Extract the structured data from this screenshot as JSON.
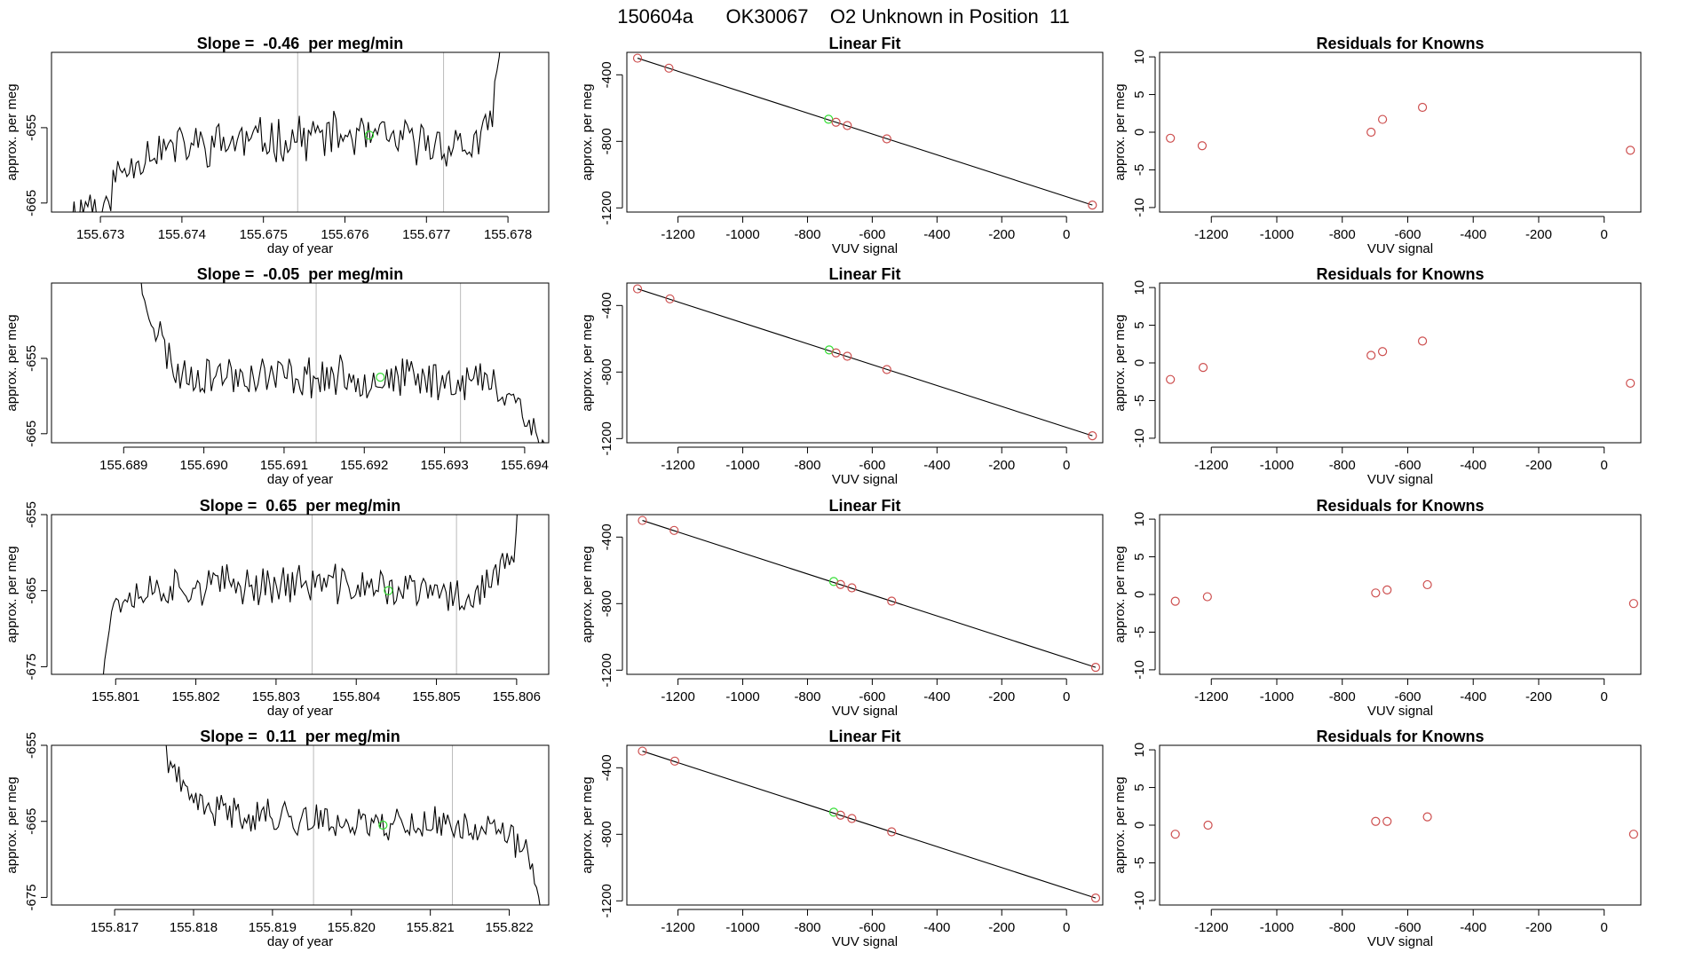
{
  "page_title": "150604a      OK30067    O2 Unknown in Position  11",
  "colors": {
    "line": "#000000",
    "known": "#CD4F4F",
    "unknown": "#33DD33",
    "divider": "#BBBBBB",
    "axis": "#000000"
  },
  "chart_data": [
    {
      "type": "line",
      "row": 0,
      "title": "Slope =  -0.46  per meg/min",
      "xlabel": "day of year",
      "ylabel": "approx. per meg",
      "xlim": [
        155.6724,
        155.6785
      ],
      "ylim": [
        -666.2,
        -645.0
      ],
      "xticks": [
        155.673,
        155.674,
        155.675,
        155.676,
        155.677,
        155.678
      ],
      "xtick_labels": [
        "155.673",
        "155.674",
        "155.675",
        "155.676",
        "155.677",
        "155.678"
      ],
      "yticks": [
        -655,
        -665
      ],
      "ytick_labels": [
        "-655",
        "-665"
      ],
      "dividers": [
        155.67542,
        155.67721
      ],
      "marker": {
        "x": 155.6763,
        "y": -656.0
      },
      "trace": {
        "seed": 11,
        "x0": 155.67262,
        "x1": 155.67795,
        "n": 190,
        "anchors": [
          [
            0,
            -667
          ],
          [
            0.05,
            -664.5
          ],
          [
            0.08,
            -667
          ],
          [
            0.1,
            -662
          ],
          [
            0.18,
            -658
          ],
          [
            0.35,
            -657
          ],
          [
            0.6,
            -656
          ],
          [
            0.92,
            -657.5
          ],
          [
            0.965,
            -656
          ],
          [
            0.985,
            -648
          ],
          [
            1,
            -640
          ]
        ],
        "noise": 2.6
      }
    },
    {
      "type": "line",
      "row": 1,
      "title": "Slope =  -0.05  per meg/min",
      "xlabel": "day of year",
      "ylabel": "approx. per meg",
      "xlim": [
        155.6881,
        155.6943
      ],
      "ylim": [
        -666.2,
        -645.0
      ],
      "xticks": [
        155.689,
        155.69,
        155.691,
        155.692,
        155.693,
        155.694
      ],
      "xtick_labels": [
        "155.689",
        "155.690",
        "155.691",
        "155.692",
        "155.693",
        "155.694"
      ],
      "yticks": [
        -655,
        -665
      ],
      "ytick_labels": [
        "-655",
        "-665"
      ],
      "dividers": [
        155.6914,
        155.6932
      ],
      "marker": {
        "x": 155.6922,
        "y": -657.5
      },
      "trace": {
        "seed": 23,
        "x0": 155.68915,
        "x1": 155.69425,
        "n": 185,
        "anchors": [
          [
            0,
            -643
          ],
          [
            0.05,
            -651
          ],
          [
            0.1,
            -657
          ],
          [
            0.5,
            -657.5
          ],
          [
            0.85,
            -658
          ],
          [
            0.93,
            -660
          ],
          [
            0.975,
            -665
          ],
          [
            1,
            -667
          ]
        ],
        "noise": 2.4
      }
    },
    {
      "type": "line",
      "row": 2,
      "title": "Slope =  0.65  per meg/min",
      "xlabel": "day of year",
      "ylabel": "approx. per meg",
      "xlim": [
        155.8002,
        155.8064
      ],
      "ylim": [
        -676.0,
        -655.0
      ],
      "xticks": [
        155.801,
        155.802,
        155.803,
        155.804,
        155.805,
        155.806
      ],
      "xtick_labels": [
        "155.801",
        "155.802",
        "155.803",
        "155.804",
        "155.805",
        "155.806"
      ],
      "yticks": [
        -655,
        -665,
        -675
      ],
      "ytick_labels": [
        "-655",
        "-665",
        "-675"
      ],
      "dividers": [
        155.80345,
        155.80525
      ],
      "marker": {
        "x": 155.8044,
        "y": -665.0
      },
      "trace": {
        "seed": 37,
        "x0": 155.80078,
        "x1": 155.80605,
        "n": 188,
        "anchors": [
          [
            0,
            -678
          ],
          [
            0.04,
            -666
          ],
          [
            0.15,
            -664.5
          ],
          [
            0.5,
            -664
          ],
          [
            0.75,
            -665
          ],
          [
            0.88,
            -666
          ],
          [
            0.96,
            -662
          ],
          [
            0.985,
            -660
          ],
          [
            1,
            -650
          ]
        ],
        "noise": 2.3
      }
    },
    {
      "type": "line",
      "row": 3,
      "title": "Slope =  0.11  per meg/min",
      "xlabel": "day of year",
      "ylabel": "approx. per meg",
      "xlim": [
        155.8162,
        155.8225
      ],
      "ylim": [
        -676.0,
        -655.0
      ],
      "xticks": [
        155.817,
        155.818,
        155.819,
        155.82,
        155.821,
        155.822
      ],
      "xtick_labels": [
        "155.817",
        "155.818",
        "155.819",
        "155.820",
        "155.821",
        "155.822"
      ],
      "yticks": [
        -655,
        -665,
        -675
      ],
      "ytick_labels": [
        "-655",
        "-665",
        "-675"
      ],
      "dividers": [
        155.81952,
        155.82128
      ],
      "marker": {
        "x": 155.8204,
        "y": -665.5
      },
      "trace": {
        "seed": 41,
        "x0": 155.8176,
        "x1": 155.8224,
        "n": 180,
        "anchors": [
          [
            0,
            -654
          ],
          [
            0.05,
            -661
          ],
          [
            0.12,
            -663.5
          ],
          [
            0.45,
            -665
          ],
          [
            0.8,
            -665.5
          ],
          [
            0.9,
            -666.5
          ],
          [
            0.96,
            -669
          ],
          [
            1,
            -675
          ]
        ],
        "noise": 2.0
      }
    },
    {
      "type": "scatter",
      "row": 0,
      "title": "Linear Fit",
      "xlabel": "VUV signal",
      "ylabel": "approx. per meg",
      "xlim": [
        -1358,
        112
      ],
      "ylim": [
        -1225,
        -265
      ],
      "xticks": [
        -1200,
        -1000,
        -800,
        -600,
        -400,
        -200,
        0
      ],
      "xtick_labels": [
        "-1200",
        "-1000",
        "-800",
        "-600",
        "-400",
        "-200",
        "0"
      ],
      "yticks": [
        -400,
        -800,
        -1200
      ],
      "ytick_labels": [
        "-400",
        "-800",
        "-1200"
      ],
      "known": [
        [
          -1325,
          -300
        ],
        [
          -1228,
          -360
        ],
        [
          -712,
          -685
        ],
        [
          -677,
          -705
        ],
        [
          -555,
          -785
        ],
        [
          80,
          -1183
        ]
      ],
      "unknown": [
        [
          -735,
          -667
        ]
      ],
      "fit": [
        [
          -1325,
          -300
        ],
        [
          80,
          -1183
        ]
      ]
    },
    {
      "type": "scatter",
      "row": 1,
      "title": "Linear Fit",
      "xlabel": "VUV signal",
      "ylabel": "approx. per meg",
      "xlim": [
        -1358,
        112
      ],
      "ylim": [
        -1225,
        -265
      ],
      "xticks": [
        -1200,
        -1000,
        -800,
        -600,
        -400,
        -200,
        0
      ],
      "xtick_labels": [
        "-1200",
        "-1000",
        "-800",
        "-600",
        "-400",
        "-200",
        "0"
      ],
      "yticks": [
        -400,
        -800,
        -1200
      ],
      "ytick_labels": [
        "-400",
        "-800",
        "-1200"
      ],
      "known": [
        [
          -1325,
          -300
        ],
        [
          -1225,
          -360
        ],
        [
          -712,
          -685
        ],
        [
          -677,
          -705
        ],
        [
          -555,
          -785
        ],
        [
          80,
          -1183
        ]
      ],
      "unknown": [
        [
          -733,
          -667
        ]
      ],
      "fit": [
        [
          -1325,
          -300
        ],
        [
          80,
          -1183
        ]
      ]
    },
    {
      "type": "scatter",
      "row": 2,
      "title": "Linear Fit",
      "xlabel": "VUV signal",
      "ylabel": "approx. per meg",
      "xlim": [
        -1358,
        112
      ],
      "ylim": [
        -1225,
        -265
      ],
      "xticks": [
        -1200,
        -1000,
        -800,
        -600,
        -400,
        -200,
        0
      ],
      "xtick_labels": [
        "-1200",
        "-1000",
        "-800",
        "-600",
        "-400",
        "-200",
        "0"
      ],
      "yticks": [
        -400,
        -800,
        -1200
      ],
      "ytick_labels": [
        "-400",
        "-800",
        "-1200"
      ],
      "known": [
        [
          -1310,
          -300
        ],
        [
          -1212,
          -360
        ],
        [
          -698,
          -685
        ],
        [
          -663,
          -705
        ],
        [
          -540,
          -785
        ],
        [
          90,
          -1183
        ]
      ],
      "unknown": [
        [
          -719,
          -667
        ]
      ],
      "fit": [
        [
          -1310,
          -300
        ],
        [
          90,
          -1183
        ]
      ]
    },
    {
      "type": "scatter",
      "row": 3,
      "title": "Linear Fit",
      "xlabel": "VUV signal",
      "ylabel": "approx. per meg",
      "xlim": [
        -1358,
        112
      ],
      "ylim": [
        -1225,
        -265
      ],
      "xticks": [
        -1200,
        -1000,
        -800,
        -600,
        -400,
        -200,
        0
      ],
      "xtick_labels": [
        "-1200",
        "-1000",
        "-800",
        "-600",
        "-400",
        "-200",
        "0"
      ],
      "yticks": [
        -400,
        -800,
        -1200
      ],
      "ytick_labels": [
        "-400",
        "-800",
        "-1200"
      ],
      "known": [
        [
          -1310,
          -300
        ],
        [
          -1210,
          -360
        ],
        [
          -698,
          -685
        ],
        [
          -663,
          -705
        ],
        [
          -540,
          -785
        ],
        [
          90,
          -1183
        ]
      ],
      "unknown": [
        [
          -719,
          -667
        ]
      ],
      "fit": [
        [
          -1310,
          -300
        ],
        [
          90,
          -1183
        ]
      ]
    },
    {
      "type": "scatter",
      "row": 0,
      "title": "Residuals for Knowns",
      "xlabel": "VUV signal",
      "ylabel": "approx. per meg",
      "xlim": [
        -1358,
        112
      ],
      "ylim": [
        -10.6,
        10.6
      ],
      "xticks": [
        -1200,
        -1000,
        -800,
        -600,
        -400,
        -200,
        0
      ],
      "xtick_labels": [
        "-1200",
        "-1000",
        "-800",
        "-600",
        "-400",
        "-200",
        "0"
      ],
      "yticks": [
        10,
        5,
        0,
        -5,
        -10
      ],
      "ytick_labels": [
        "10",
        "5",
        "0",
        "-5",
        "-10"
      ],
      "known": [
        [
          -1325,
          -0.8
        ],
        [
          -1228,
          -1.8
        ],
        [
          -712,
          0.0
        ],
        [
          -677,
          1.7
        ],
        [
          -555,
          3.3
        ],
        [
          80,
          -2.4
        ]
      ]
    },
    {
      "type": "scatter",
      "row": 1,
      "title": "Residuals for Knowns",
      "xlabel": "VUV signal",
      "ylabel": "approx. per meg",
      "xlim": [
        -1358,
        112
      ],
      "ylim": [
        -10.6,
        10.6
      ],
      "xticks": [
        -1200,
        -1000,
        -800,
        -600,
        -400,
        -200,
        0
      ],
      "xtick_labels": [
        "-1200",
        "-1000",
        "-800",
        "-600",
        "-400",
        "-200",
        "0"
      ],
      "yticks": [
        10,
        5,
        0,
        -5,
        -10
      ],
      "ytick_labels": [
        "10",
        "5",
        "0",
        "-5",
        "-10"
      ],
      "known": [
        [
          -1325,
          -2.2
        ],
        [
          -1225,
          -0.6
        ],
        [
          -712,
          1.0
        ],
        [
          -677,
          1.5
        ],
        [
          -555,
          2.9
        ],
        [
          80,
          -2.7
        ]
      ]
    },
    {
      "type": "scatter",
      "row": 2,
      "title": "Residuals for Knowns",
      "xlabel": "VUV signal",
      "ylabel": "approx. per meg",
      "xlim": [
        -1358,
        112
      ],
      "ylim": [
        -10.6,
        10.6
      ],
      "xticks": [
        -1200,
        -1000,
        -800,
        -600,
        -400,
        -200,
        0
      ],
      "xtick_labels": [
        "-1200",
        "-1000",
        "-800",
        "-600",
        "-400",
        "-200",
        "0"
      ],
      "yticks": [
        10,
        5,
        0,
        -5,
        -10
      ],
      "ytick_labels": [
        "10",
        "5",
        "0",
        "-5",
        "-10"
      ],
      "known": [
        [
          -1310,
          -0.9
        ],
        [
          -1212,
          -0.3
        ],
        [
          -698,
          0.2
        ],
        [
          -663,
          0.6
        ],
        [
          -540,
          1.3
        ],
        [
          90,
          -1.2
        ]
      ]
    },
    {
      "type": "scatter",
      "row": 3,
      "title": "Residuals for Knowns",
      "xlabel": "VUV signal",
      "ylabel": "approx. per meg",
      "xlim": [
        -1358,
        112
      ],
      "ylim": [
        -10.6,
        10.6
      ],
      "xticks": [
        -1200,
        -1000,
        -800,
        -600,
        -400,
        -200,
        0
      ],
      "xtick_labels": [
        "-1200",
        "-1000",
        "-800",
        "-600",
        "-400",
        "-200",
        "0"
      ],
      "yticks": [
        10,
        5,
        0,
        -5,
        -10
      ],
      "ytick_labels": [
        "10",
        "5",
        "0",
        "-5",
        "-10"
      ],
      "known": [
        [
          -1310,
          -1.2
        ],
        [
          -1210,
          0.0
        ],
        [
          -698,
          0.5
        ],
        [
          -663,
          0.5
        ],
        [
          -540,
          1.1
        ],
        [
          90,
          -1.2
        ]
      ]
    }
  ]
}
